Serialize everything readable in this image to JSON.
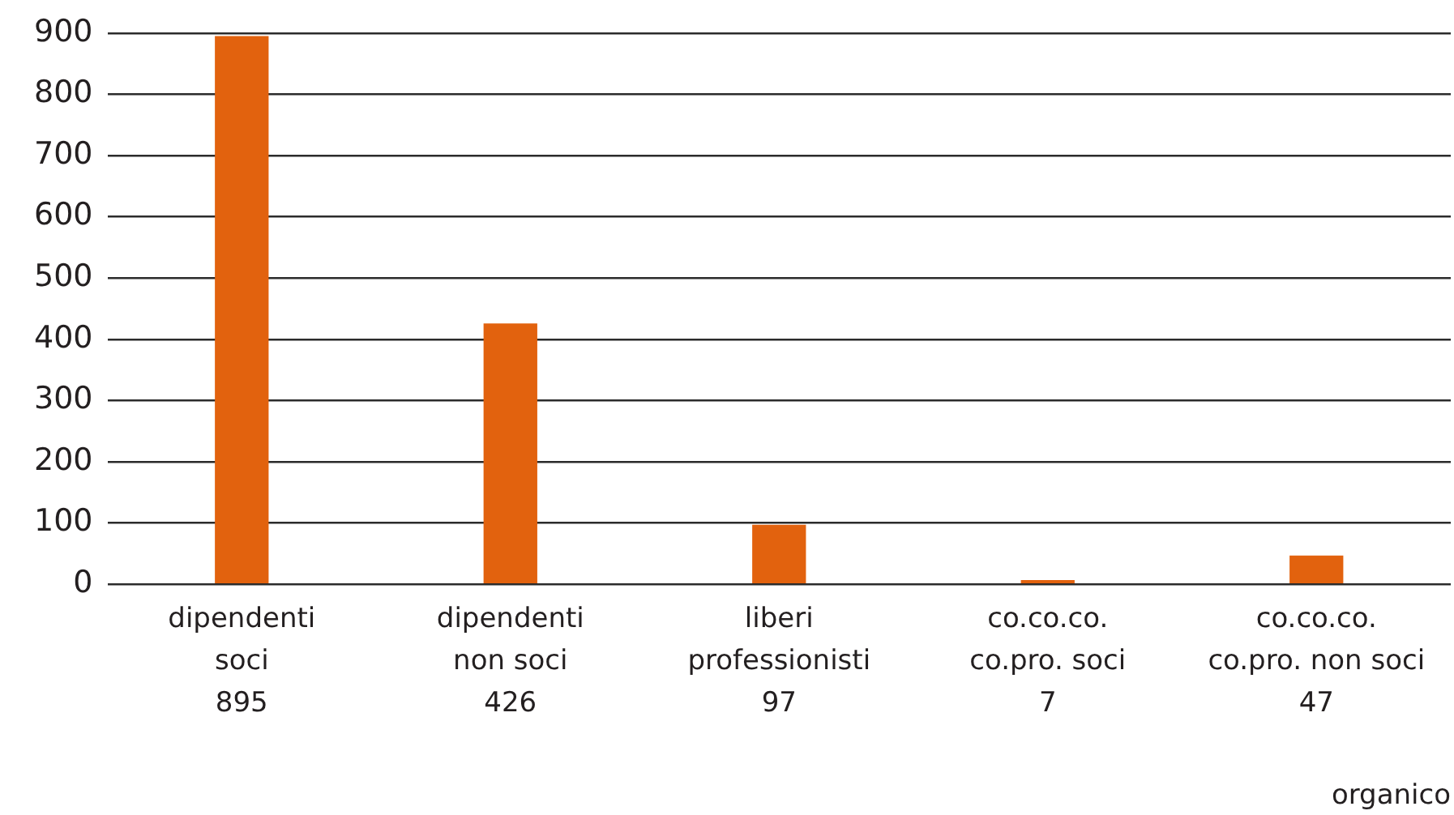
{
  "chart_data": {
    "type": "bar",
    "categories": [
      "dipendenti soci",
      "dipendenti non soci",
      "liberi professionisti",
      "co.co.co. co.pro. soci",
      "co.co.co. co.pro. non soci"
    ],
    "values": [
      895,
      426,
      97,
      7,
      47
    ],
    "color": "#e2620e",
    "data_labels": true,
    "xlabel": "organico",
    "ylim": [
      0,
      900
    ],
    "yticks": [
      0,
      100,
      200,
      300,
      400,
      500,
      600,
      700,
      800,
      900
    ],
    "grid": "y"
  }
}
